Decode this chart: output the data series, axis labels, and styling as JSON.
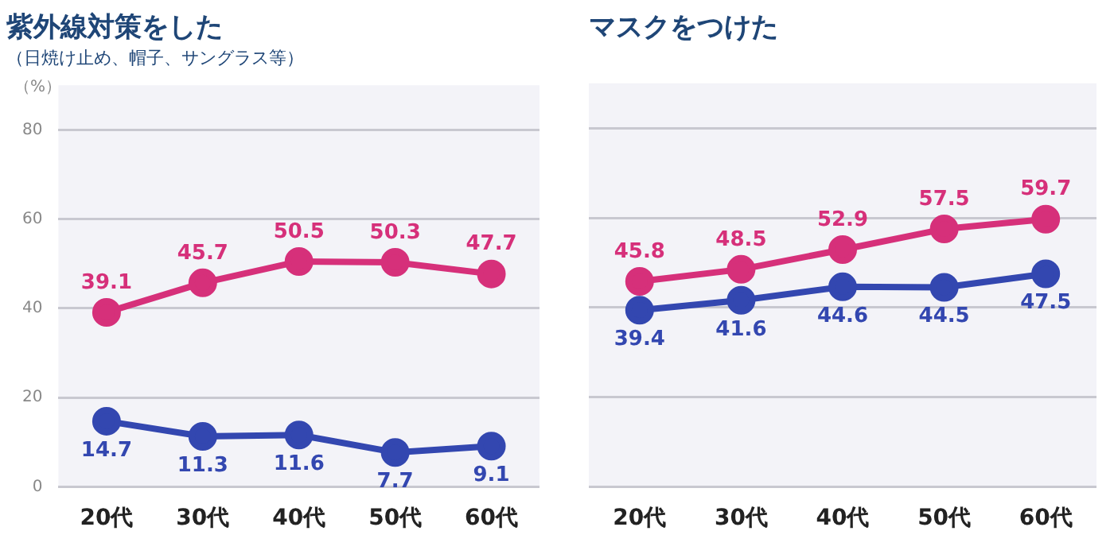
{
  "chart_data": [
    {
      "type": "line",
      "title": "紫外線対策をした",
      "subtitle": "（日焼け止め、帽子、サングラス等）",
      "ylabel": "（%）",
      "categories": [
        "20代",
        "30代",
        "40代",
        "50代",
        "60代"
      ],
      "series": [
        {
          "color": "#d6307a",
          "values": [
            39.1,
            45.7,
            50.5,
            50.3,
            47.7
          ]
        },
        {
          "color": "#3347b0",
          "values": [
            14.7,
            11.3,
            11.6,
            7.7,
            9.1
          ]
        }
      ],
      "ylim": [
        0,
        90
      ],
      "yticks": [
        0,
        20,
        40,
        60,
        80
      ],
      "grid": "y",
      "marker": "circle",
      "data_labels": true
    },
    {
      "type": "line",
      "title": "マスクをつけた",
      "categories": [
        "20代",
        "30代",
        "40代",
        "50代",
        "60代"
      ],
      "series": [
        {
          "color": "#d6307a",
          "values": [
            45.8,
            48.5,
            52.9,
            57.5,
            59.7
          ]
        },
        {
          "color": "#3347b0",
          "values": [
            39.4,
            41.6,
            44.6,
            44.5,
            47.5
          ]
        }
      ],
      "ylim": [
        0,
        90
      ],
      "yticks": [
        0,
        20,
        40,
        60,
        80
      ],
      "grid": "y",
      "marker": "circle",
      "data_labels": true,
      "tick_labels": "x"
    }
  ]
}
